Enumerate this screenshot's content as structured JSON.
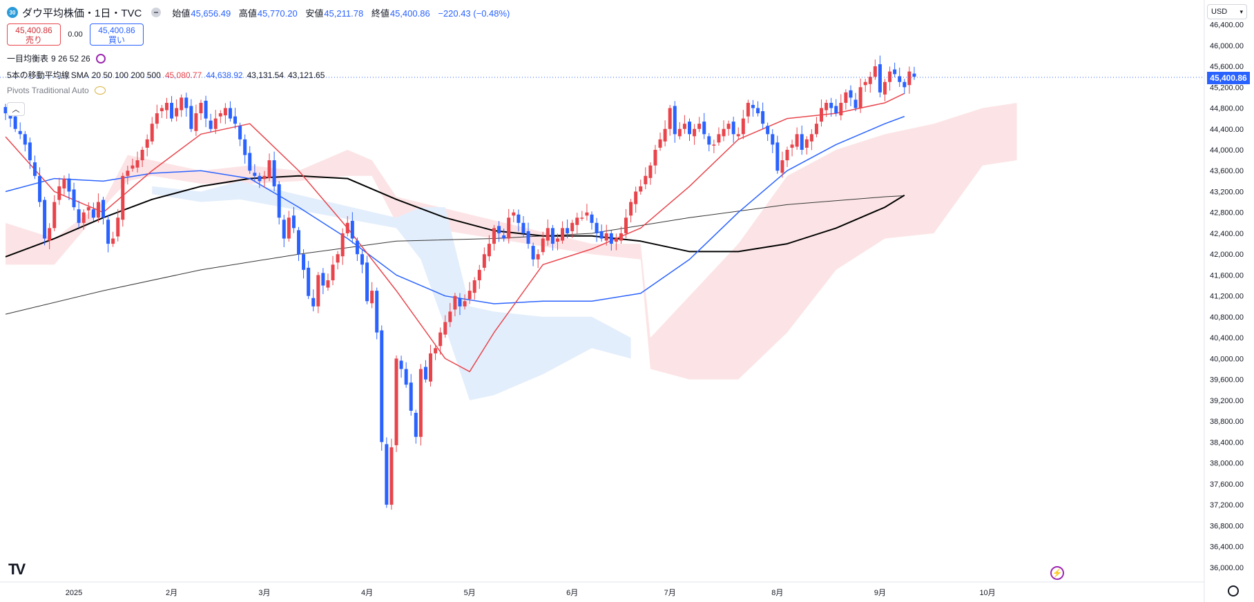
{
  "header": {
    "badge": "30",
    "symbol": "ダウ平均株価・1日・TVC",
    "open_label": "始値",
    "open": "45,656.49",
    "high_label": "高値",
    "high": "45,770.20",
    "low_label": "安値",
    "low": "45,211.78",
    "close_label": "終値",
    "close": "45,400.86",
    "change": "−220.43 (−0.48%)"
  },
  "trade": {
    "sell_price": "45,400.86",
    "sell_label": "売り",
    "spread": "0.00",
    "buy_price": "45,400.86",
    "buy_label": "買い"
  },
  "indicators": {
    "ichimoku": {
      "name": "一目均衡表",
      "params": "9 26 52 26"
    },
    "sma": {
      "name": "5本の移動平均線",
      "type": "SMA",
      "params": "20 50 100 200 500",
      "v20": "45,080.77",
      "v50": "44,638.92",
      "v100": "43,131.54",
      "v200": "43,121.65"
    },
    "pivots": {
      "name": "Pivots Traditional Auto"
    }
  },
  "currency": "USD",
  "last_price": "45,400.86",
  "icons": {
    "logo": "tradingview-logo-icon",
    "settings": "gear-icon",
    "flash": "lightning-icon",
    "collapse": "chevron-up-icon"
  },
  "colors": {
    "up": "#e8444b",
    "down": "#2962ff",
    "sma20": "#e8444b",
    "sma50": "#2962ff",
    "sma100": "#000000",
    "sma200": "#333333",
    "cloud_bull": "#fce4e6",
    "cloud_bear": "#e3eefc"
  },
  "chart_data": {
    "type": "candlestick",
    "y_axis": {
      "ticks": [
        "46,400.00",
        "46,000.00",
        "45,600.00",
        "45,200.00",
        "44,800.00",
        "44,400.00",
        "44,000.00",
        "43,600.00",
        "43,200.00",
        "42,800.00",
        "42,400.00",
        "42,000.00",
        "41,600.00",
        "41,200.00",
        "40,800.00",
        "40,400.00",
        "40,000.00",
        "39,600.00",
        "39,200.00",
        "38,800.00",
        "38,400.00",
        "38,000.00",
        "37,600.00",
        "37,200.00",
        "36,800.00",
        "36,400.00",
        "36,000.00"
      ],
      "range": [
        35800,
        46600
      ]
    },
    "x_axis": {
      "ticks": [
        {
          "label": "2025",
          "bar": 14
        },
        {
          "label": "2月",
          "bar": 34
        },
        {
          "label": "3月",
          "bar": 53
        },
        {
          "label": "4月",
          "bar": 74
        },
        {
          "label": "5月",
          "bar": 95
        },
        {
          "label": "6月",
          "bar": 116
        },
        {
          "label": "7月",
          "bar": 136
        },
        {
          "label": "8月",
          "bar": 158
        },
        {
          "label": "9月",
          "bar": 179
        },
        {
          "label": "10月",
          "bar": 201
        }
      ],
      "bars_visible": 211
    },
    "close": [
      44700,
      44600,
      44400,
      44300,
      44100,
      43800,
      43500,
      43000,
      42300,
      42500,
      43000,
      43300,
      43450,
      43200,
      42900,
      42600,
      42800,
      42900,
      42700,
      43000,
      42700,
      42200,
      42300,
      42700,
      43500,
      43600,
      43700,
      43800,
      44000,
      44200,
      44500,
      44700,
      44800,
      44900,
      44600,
      44800,
      45000,
      44800,
      44400,
      44700,
      44900,
      44600,
      44400,
      44600,
      44700,
      44800,
      44600,
      44500,
      44200,
      43900,
      43600,
      43500,
      43400,
      43500,
      43800,
      43300,
      42700,
      42300,
      42700,
      42500,
      42000,
      41700,
      41200,
      41000,
      41600,
      41400,
      41500,
      41800,
      42000,
      42400,
      42600,
      42300,
      42000,
      41800,
      41100,
      41300,
      40500,
      38400,
      37200,
      38300,
      40000,
      39800,
      39500,
      39000,
      38500,
      39800,
      39600,
      40100,
      40200,
      40500,
      40700,
      40900,
      41200,
      41000,
      41100,
      41300,
      41500,
      41700,
      42000,
      42200,
      42500,
      42400,
      42300,
      42700,
      42800,
      42600,
      42400,
      42200,
      41900,
      42000,
      42300,
      42500,
      42200,
      42300,
      42500,
      42400,
      42600,
      42700,
      42700,
      42800,
      42600,
      42400,
      42300,
      42400,
      42200,
      42300,
      42400,
      42700,
      43000,
      43200,
      43300,
      43500,
      43700,
      44000,
      44200,
      44400,
      44800,
      44300,
      44400,
      44500,
      44300,
      44400,
      44500,
      44300,
      44100,
      44100,
      44300,
      44400,
      44500,
      44300,
      44300,
      44600,
      44900,
      44800,
      44700,
      44500,
      44300,
      44100,
      43600,
      43800,
      44000,
      44100,
      44300,
      44000,
      44200,
      44300,
      44500,
      44800,
      44900,
      44800,
      44700,
      44900,
      45100,
      45000,
      44800,
      45200,
      45300,
      45400,
      45600,
      45100,
      45300,
      45500,
      45450,
      45300,
      45200,
      45500,
      45400
    ],
    "sma20_points": [
      [
        0,
        44250
      ],
      [
        10,
        43200
      ],
      [
        20,
        42800
      ],
      [
        30,
        43600
      ],
      [
        40,
        44300
      ],
      [
        50,
        44500
      ],
      [
        60,
        43600
      ],
      [
        70,
        42500
      ],
      [
        80,
        41300
      ],
      [
        90,
        40000
      ],
      [
        95,
        39750
      ],
      [
        100,
        40500
      ],
      [
        110,
        41800
      ],
      [
        120,
        42100
      ],
      [
        130,
        42500
      ],
      [
        140,
        43300
      ],
      [
        150,
        44200
      ],
      [
        160,
        44600
      ],
      [
        170,
        44700
      ],
      [
        180,
        44900
      ],
      [
        184,
        45080
      ]
    ],
    "sma50_points": [
      [
        0,
        43200
      ],
      [
        10,
        43450
      ],
      [
        20,
        43400
      ],
      [
        30,
        43550
      ],
      [
        40,
        43600
      ],
      [
        50,
        43450
      ],
      [
        60,
        42900
      ],
      [
        70,
        42300
      ],
      [
        80,
        41600
      ],
      [
        90,
        41200
      ],
      [
        100,
        41050
      ],
      [
        110,
        41100
      ],
      [
        120,
        41100
      ],
      [
        130,
        41250
      ],
      [
        140,
        41900
      ],
      [
        150,
        42800
      ],
      [
        160,
        43600
      ],
      [
        170,
        44100
      ],
      [
        180,
        44500
      ],
      [
        184,
        44640
      ]
    ],
    "sma100_points": [
      [
        0,
        41950
      ],
      [
        10,
        42300
      ],
      [
        20,
        42700
      ],
      [
        30,
        43050
      ],
      [
        40,
        43300
      ],
      [
        50,
        43450
      ],
      [
        60,
        43500
      ],
      [
        70,
        43450
      ],
      [
        80,
        43050
      ],
      [
        90,
        42700
      ],
      [
        100,
        42450
      ],
      [
        110,
        42350
      ],
      [
        120,
        42350
      ],
      [
        130,
        42250
      ],
      [
        140,
        42050
      ],
      [
        150,
        42050
      ],
      [
        160,
        42200
      ],
      [
        170,
        42500
      ],
      [
        180,
        42900
      ],
      [
        184,
        43130
      ]
    ],
    "sma200_points": [
      [
        0,
        40850
      ],
      [
        20,
        41300
      ],
      [
        40,
        41700
      ],
      [
        60,
        42000
      ],
      [
        80,
        42250
      ],
      [
        100,
        42300
      ],
      [
        120,
        42400
      ],
      [
        140,
        42700
      ],
      [
        160,
        42950
      ],
      [
        180,
        43100
      ],
      [
        184,
        43120
      ]
    ],
    "cloud_bull": [
      [
        0,
        42600,
        41800
      ],
      [
        10,
        42300,
        41800
      ],
      [
        20,
        43000,
        42900
      ],
      [
        25,
        43900,
        43400
      ],
      [
        30,
        43800,
        43500
      ],
      [
        40,
        43600,
        43350
      ],
      [
        50,
        43700,
        43350
      ],
      [
        60,
        43600,
        43400
      ],
      [
        70,
        44000,
        43500
      ],
      [
        75,
        43800,
        43500
      ],
      [
        80,
        43100,
        42600
      ],
      [
        120,
        42200,
        42000
      ],
      [
        130,
        42200,
        41900
      ],
      [
        132,
        40400,
        39800
      ],
      [
        140,
        41200,
        39600
      ],
      [
        150,
        42200,
        39600
      ],
      [
        160,
        43500,
        40500
      ],
      [
        170,
        44000,
        41700
      ],
      [
        180,
        44300,
        42300
      ],
      [
        190,
        44500,
        42400
      ],
      [
        200,
        44800,
        43700
      ],
      [
        207,
        44900,
        43800
      ]
    ],
    "cloud_bear": [
      [
        30,
        43300,
        43150
      ],
      [
        40,
        43200,
        43000
      ],
      [
        48,
        43400,
        43050
      ],
      [
        80,
        42700,
        42500
      ],
      [
        85,
        42900,
        41900
      ],
      [
        90,
        42900,
        40600
      ],
      [
        95,
        41000,
        39200
      ],
      [
        100,
        40900,
        39300
      ],
      [
        110,
        40800,
        39700
      ],
      [
        120,
        40800,
        40200
      ],
      [
        128,
        40400,
        40000
      ]
    ]
  }
}
